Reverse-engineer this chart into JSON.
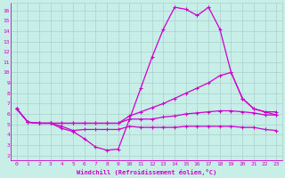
{
  "xlabel": "Windchill (Refroidissement éolien,°C)",
  "x_ticks": [
    0,
    1,
    2,
    3,
    4,
    5,
    6,
    7,
    8,
    9,
    10,
    11,
    12,
    13,
    14,
    15,
    16,
    17,
    18,
    19,
    20,
    21,
    22,
    23
  ],
  "yticks": [
    2,
    3,
    4,
    5,
    6,
    7,
    8,
    9,
    10,
    11,
    12,
    13,
    14,
    15,
    16
  ],
  "bg_color": "#c8eee8",
  "line_color": "#cc00cc",
  "grid_color": "#aacfcf",
  "xlim": [
    -0.5,
    23.5
  ],
  "ylim": [
    1.5,
    16.7
  ],
  "line1_x": [
    0,
    1,
    2,
    3,
    4,
    5,
    6,
    7,
    8,
    9,
    10,
    11,
    12,
    13,
    14,
    15,
    16,
    17,
    18,
    19,
    20,
    21,
    22,
    23
  ],
  "line1_y": [
    6.5,
    5.2,
    5.1,
    5.1,
    4.6,
    4.3,
    3.6,
    2.8,
    2.5,
    2.6,
    5.5,
    8.5,
    11.5,
    14.2,
    16.3,
    16.1,
    15.5,
    16.3,
    14.2,
    10.0,
    7.5,
    6.5,
    6.2,
    6.2
  ],
  "line2_x": [
    0,
    1,
    2,
    3,
    4,
    5,
    6,
    7,
    8,
    9,
    10,
    11,
    12,
    13,
    14,
    15,
    16,
    17,
    18,
    19,
    20,
    21,
    22,
    23
  ],
  "line2_y": [
    6.5,
    5.2,
    5.1,
    5.1,
    5.1,
    5.1,
    5.1,
    5.1,
    5.1,
    5.1,
    5.8,
    6.2,
    6.6,
    7.0,
    7.5,
    8.0,
    8.5,
    9.0,
    9.7,
    10.0,
    7.5,
    6.5,
    6.2,
    5.9
  ],
  "line3_x": [
    0,
    1,
    2,
    3,
    4,
    5,
    6,
    7,
    8,
    9,
    10,
    11,
    12,
    13,
    14,
    15,
    16,
    17,
    18,
    19,
    20,
    21,
    22,
    23
  ],
  "line3_y": [
    6.5,
    5.2,
    5.1,
    5.1,
    5.1,
    5.1,
    5.1,
    5.1,
    5.1,
    5.1,
    5.5,
    5.5,
    5.5,
    5.7,
    5.8,
    6.0,
    6.1,
    6.2,
    6.3,
    6.3,
    6.2,
    6.1,
    5.9,
    5.9
  ],
  "line4_x": [
    0,
    1,
    2,
    3,
    4,
    5,
    6,
    7,
    8,
    9,
    10,
    11,
    12,
    13,
    14,
    15,
    16,
    17,
    18,
    19,
    20,
    21,
    22,
    23
  ],
  "line4_y": [
    6.5,
    5.2,
    5.1,
    5.1,
    4.8,
    4.4,
    4.5,
    4.5,
    4.5,
    4.5,
    4.8,
    4.7,
    4.7,
    4.7,
    4.7,
    4.8,
    4.8,
    4.8,
    4.8,
    4.8,
    4.7,
    4.7,
    4.5,
    4.4
  ]
}
